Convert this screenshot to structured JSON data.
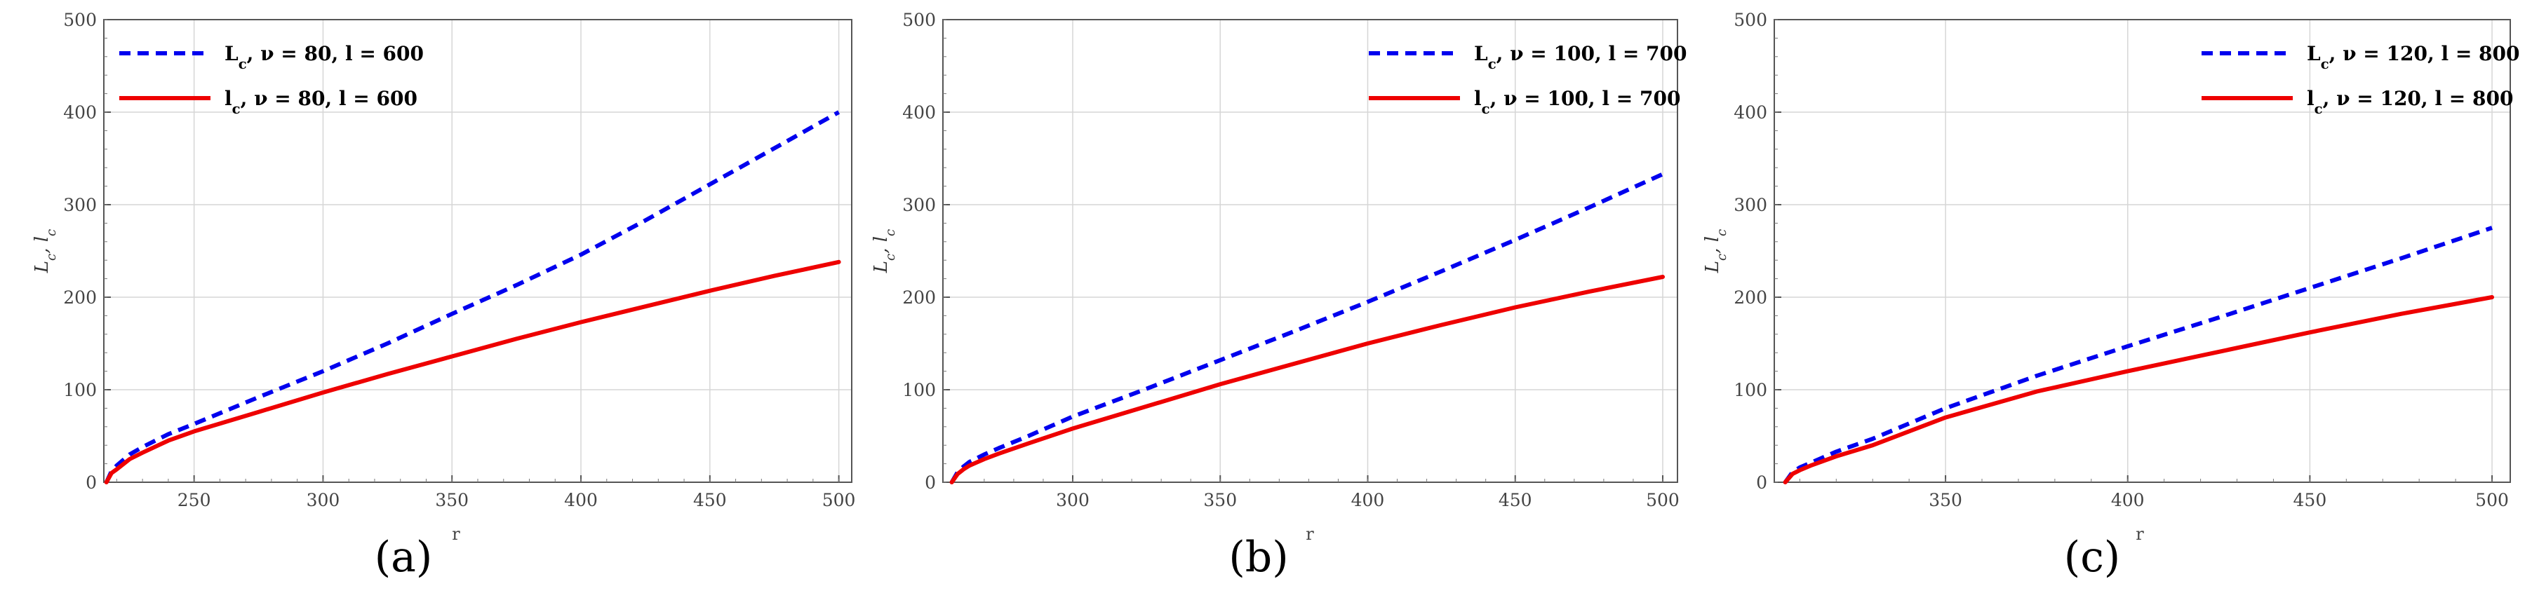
{
  "chart_data": [
    {
      "type": "line",
      "panel_label": "(a)",
      "xlabel": "r",
      "ylabel": "L_c, l_c",
      "xlim": [
        215,
        505
      ],
      "ylim": [
        0,
        500
      ],
      "xticks": [
        250,
        300,
        350,
        400,
        450,
        500
      ],
      "yticks": [
        0,
        100,
        200,
        300,
        400,
        500
      ],
      "grid": true,
      "legend_position": "top-left",
      "series": [
        {
          "name": "L_c, ν = 80, l = 600",
          "style": "dashed",
          "color": "#0000ee",
          "x": [
            216,
            218,
            220,
            225,
            230,
            240,
            250,
            275,
            300,
            325,
            350,
            375,
            400,
            425,
            450,
            475,
            500
          ],
          "y": [
            0,
            12,
            18,
            30,
            38,
            52,
            63,
            92,
            120,
            150,
            182,
            213,
            246,
            283,
            322,
            361,
            400
          ]
        },
        {
          "name": "l_c, ν = 80, l = 600",
          "style": "solid",
          "color": "#ee0000",
          "x": [
            216,
            218,
            220,
            225,
            230,
            240,
            250,
            275,
            300,
            325,
            350,
            375,
            400,
            425,
            450,
            475,
            500
          ],
          "y": [
            0,
            10,
            14,
            25,
            32,
            45,
            55,
            76,
            97,
            117,
            136,
            155,
            173,
            190,
            207,
            223,
            238
          ]
        }
      ]
    },
    {
      "type": "line",
      "panel_label": "(b)",
      "xlabel": "r",
      "ylabel": "L_c, l_c",
      "xlim": [
        256,
        505
      ],
      "ylim": [
        0,
        500
      ],
      "xticks": [
        300,
        350,
        400,
        450,
        500
      ],
      "yticks": [
        0,
        100,
        200,
        300,
        400,
        500
      ],
      "grid": true,
      "legend_position": "top-right",
      "series": [
        {
          "name": "L_c, ν = 100, l = 700",
          "style": "dashed",
          "color": "#0000ee",
          "x": [
            259,
            261,
            263,
            265,
            270,
            275,
            285,
            300,
            325,
            350,
            375,
            400,
            425,
            450,
            475,
            500
          ],
          "y": [
            0,
            11,
            17,
            22,
            30,
            37,
            50,
            71,
            101,
            132,
            163,
            195,
            228,
            262,
            297,
            333
          ]
        },
        {
          "name": "l_c, ν = 100, l = 700",
          "style": "solid",
          "color": "#ee0000",
          "x": [
            259,
            261,
            263,
            265,
            270,
            275,
            285,
            300,
            325,
            350,
            375,
            400,
            425,
            450,
            475,
            500
          ],
          "y": [
            0,
            9,
            14,
            18,
            25,
            31,
            42,
            58,
            82,
            106,
            128,
            150,
            170,
            189,
            206,
            222
          ]
        }
      ]
    },
    {
      "type": "line",
      "panel_label": "(c)",
      "xlabel": "r",
      "ylabel": "L_c, l_c",
      "xlim": [
        303,
        505
      ],
      "ylim": [
        0,
        500
      ],
      "xticks": [
        350,
        400,
        450,
        500
      ],
      "yticks": [
        0,
        100,
        200,
        300,
        400,
        500
      ],
      "grid": true,
      "legend_position": "top-right",
      "series": [
        {
          "name": "L_c, ν = 120, l = 800",
          "style": "dashed",
          "color": "#0000ee",
          "x": [
            306,
            308,
            310,
            313,
            320,
            330,
            350,
            375,
            400,
            425,
            450,
            475,
            500
          ],
          "y": [
            0,
            11,
            16,
            21,
            33,
            47,
            80,
            115,
            147,
            178,
            210,
            242,
            275
          ]
        },
        {
          "name": "l_c, ν = 120, l = 800",
          "style": "solid",
          "color": "#ee0000",
          "x": [
            306,
            308,
            310,
            313,
            320,
            330,
            350,
            375,
            400,
            425,
            450,
            475,
            500
          ],
          "y": [
            0,
            9,
            13,
            18,
            28,
            40,
            70,
            98,
            120,
            141,
            162,
            182,
            200
          ]
        }
      ]
    }
  ]
}
